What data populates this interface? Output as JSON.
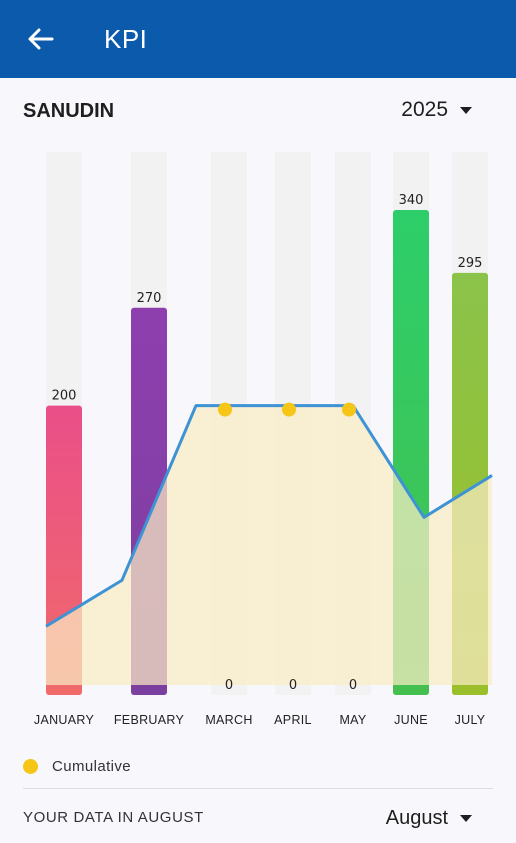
{
  "appbar": {
    "title": "KPI",
    "back_icon": "arrow-left-icon"
  },
  "user": {
    "name": "SANUDIN"
  },
  "year_select": {
    "value": "2025"
  },
  "legend": {
    "label": "Cumulative",
    "color": "#f5c518"
  },
  "footer": {
    "label": "YOUR DATA IN AUGUST",
    "month_value": "August"
  },
  "chart_data": {
    "type": "bar",
    "categories": [
      "JANUARY",
      "FEBRUARY",
      "MARCH",
      "APRIL",
      "MAY",
      "JUNE",
      "JULY"
    ],
    "values": [
      200,
      270,
      0,
      0,
      0,
      340,
      295
    ],
    "data_labels": [
      "200",
      "270",
      "0",
      "0",
      "0",
      "340",
      "295"
    ],
    "ylim": [
      0,
      340
    ],
    "bar_colors": [
      "#ea4f88",
      "#8e3fae",
      "#f2f2f2",
      "#f2f2f2",
      "#f2f2f2",
      "#2dce6a",
      "#8bc34a"
    ],
    "bar_gradient_bottom": [
      "#f06a6a",
      "#7b3fa0",
      "",
      "",
      "",
      "#45c04f",
      "#9bbf2a"
    ],
    "background_bar_color": "#f2f2f2",
    "cumulative": {
      "name": "Cumulative",
      "line_color": "#3d93d4",
      "area_color": "#faecc4",
      "point_color": "#f5c518",
      "marked_points": [
        "MARCH",
        "APRIL",
        "MAY"
      ],
      "values": [
        42,
        75,
        200,
        200,
        200,
        120,
        150
      ]
    }
  }
}
